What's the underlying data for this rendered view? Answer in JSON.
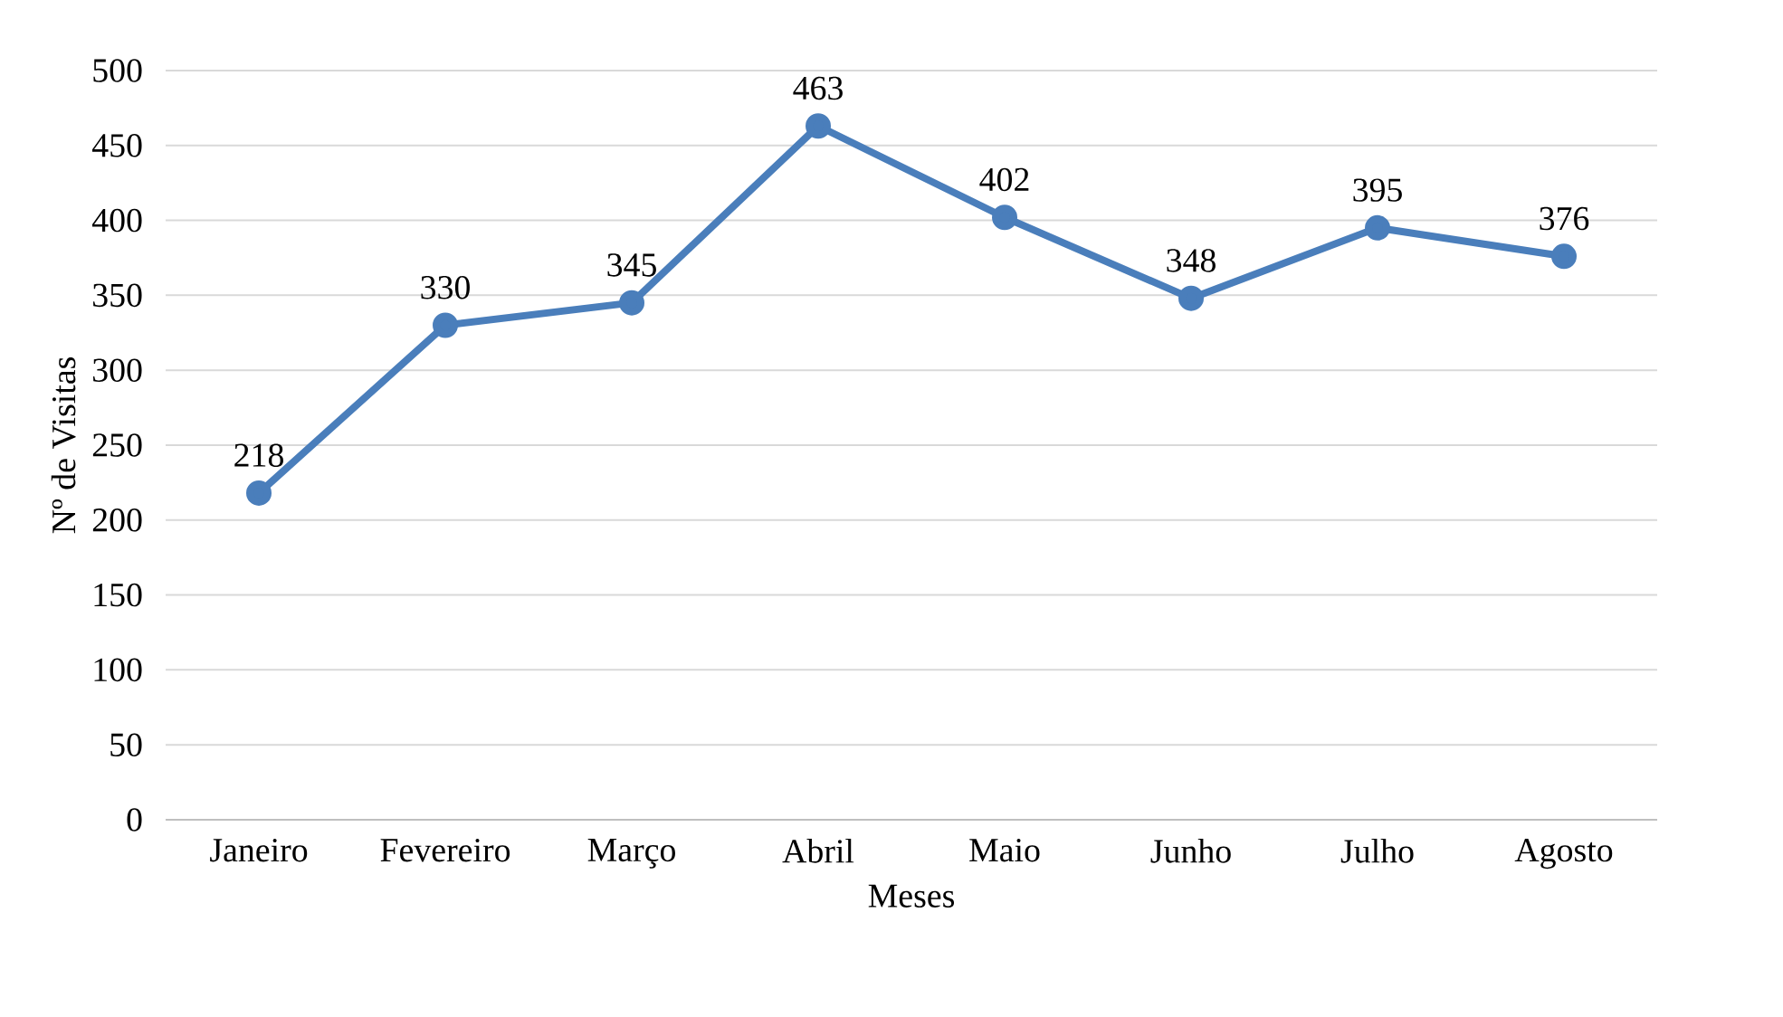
{
  "chart_data": {
    "type": "line",
    "xlabel": "Meses",
    "ylabel": "Nº de Visitas",
    "categories": [
      "Janeiro",
      "Fevereiro",
      "Março",
      "Abril",
      "Maio",
      "Junho",
      "Julho",
      "Agosto"
    ],
    "values": [
      218,
      330,
      345,
      463,
      402,
      348,
      395,
      376
    ],
    "color": "#4a7ebb",
    "marker": "circle",
    "line_style": "solid",
    "data_labels": true,
    "ylim": [
      0,
      500
    ],
    "yticks": [
      0,
      50,
      100,
      150,
      200,
      250,
      300,
      350,
      400,
      450,
      500
    ],
    "grid": "y"
  }
}
